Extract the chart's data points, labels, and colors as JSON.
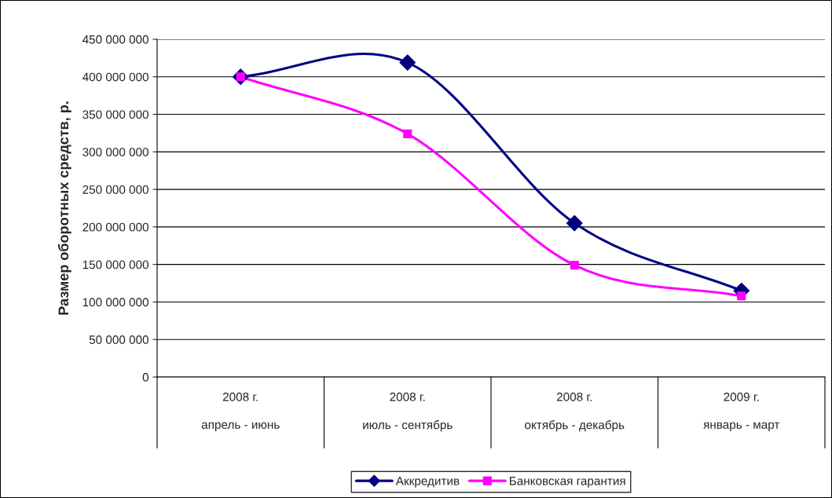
{
  "chart_data": {
    "type": "line",
    "categories": [
      "2008 г.\nапрель - июнь",
      "2008 г.\nиюль - сентябрь",
      "2008 г.\nоктябрь - декабрь",
      "2009 г.\nянварь - март"
    ],
    "series": [
      {
        "name": "Аккредитив",
        "color": "#000080",
        "marker": "diamond",
        "values": [
          400000000,
          419000000,
          205000000,
          115000000
        ]
      },
      {
        "name": "Банковская гарантия",
        "color": "#ff00ff",
        "marker": "square",
        "values": [
          400000000,
          324000000,
          149000000,
          108000000
        ]
      }
    ],
    "ylabel": "Размер оборотных средств, р.",
    "ylim": [
      0,
      450000000
    ],
    "yticks": [
      {
        "value": 0,
        "label": "0"
      },
      {
        "value": 50000000,
        "label": "50 000 000"
      },
      {
        "value": 100000000,
        "label": "100 000 000"
      },
      {
        "value": 150000000,
        "label": "150 000 000"
      },
      {
        "value": 200000000,
        "label": "200 000 000"
      },
      {
        "value": 250000000,
        "label": "250 000 000"
      },
      {
        "value": 300000000,
        "label": "300 000 000"
      },
      {
        "value": 350000000,
        "label": "350 000 000"
      },
      {
        "value": 400000000,
        "label": "400 000 000"
      },
      {
        "value": 450000000,
        "label": "450 000 000"
      }
    ],
    "grid": "y",
    "legend": "bottom"
  }
}
